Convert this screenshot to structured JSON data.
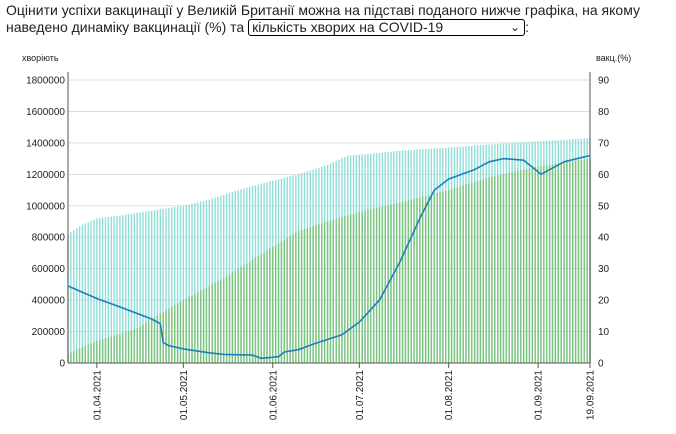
{
  "question": {
    "text_before": "Оцінити успіхи вакцинації у Великій Британії можна на підставі поданого нижче графіка, на якому наведено динаміку вакцинації (%) та",
    "select_value": "кількість хворих на COVID-19",
    "text_after": ":"
  },
  "colors": {
    "first_dose_bars": "#8fded8",
    "second_dose_bars": "#7cc47c",
    "cases_line": "#1f7fb8",
    "grid": "#dddddd",
    "axis": "#555555"
  },
  "chart_data": {
    "type": "bar+line",
    "left_axis_label": "хворіють",
    "right_axis_label": "вакц.(%)",
    "left_ylim": [
      0,
      1800000
    ],
    "left_ticks": [
      "0",
      "200000",
      "400000",
      "600000",
      "800000",
      "1000000",
      "1200000",
      "1400000",
      "1600000",
      "1800000"
    ],
    "right_ylim": [
      0,
      90
    ],
    "right_ticks": [
      "0",
      "10",
      "20",
      "30",
      "40",
      "50",
      "60",
      "70",
      "80",
      "90"
    ],
    "x_range": [
      "2021-03-22",
      "2021-09-19"
    ],
    "x_ticks": [
      "01.04.2021",
      "01.05.2021",
      "01.06.2021",
      "01.07.2021",
      "01.08.2021",
      "01.09.2021",
      "19.09.2021"
    ],
    "x_tick_dates": [
      "2021-04-01",
      "2021-05-01",
      "2021-06-01",
      "2021-07-01",
      "2021-08-01",
      "2021-09-01",
      "2021-09-19"
    ],
    "grid": true,
    "series": [
      {
        "kind": "bars",
        "axis": "right",
        "points": [
          [
            "2021-03-22",
            41
          ],
          [
            "2021-03-27",
            44
          ],
          [
            "2021-04-01",
            46
          ],
          [
            "2021-04-10",
            47
          ],
          [
            "2021-04-20",
            48.5
          ],
          [
            "2021-05-01",
            50
          ],
          [
            "2021-05-10",
            52
          ],
          [
            "2021-05-20",
            55
          ],
          [
            "2021-06-01",
            58
          ],
          [
            "2021-06-10",
            60
          ],
          [
            "2021-06-20",
            63
          ],
          [
            "2021-06-27",
            66
          ],
          [
            "2021-07-05",
            66.5
          ],
          [
            "2021-07-15",
            67.5
          ],
          [
            "2021-08-01",
            68.5
          ],
          [
            "2021-08-15",
            69.5
          ],
          [
            "2021-09-01",
            70.5
          ],
          [
            "2021-09-19",
            71.5
          ]
        ]
      },
      {
        "kind": "bars",
        "axis": "right",
        "points": [
          [
            "2021-03-22",
            3
          ],
          [
            "2021-04-01",
            7
          ],
          [
            "2021-04-15",
            11
          ],
          [
            "2021-04-20",
            14
          ],
          [
            "2021-05-01",
            20
          ],
          [
            "2021-05-15",
            27
          ],
          [
            "2021-06-01",
            37
          ],
          [
            "2021-06-10",
            42
          ],
          [
            "2021-06-20",
            45
          ],
          [
            "2021-07-01",
            48
          ],
          [
            "2021-07-15",
            51
          ],
          [
            "2021-08-01",
            55
          ],
          [
            "2021-08-15",
            59
          ],
          [
            "2021-09-01",
            62.5
          ],
          [
            "2021-09-19",
            65
          ]
        ]
      },
      {
        "kind": "line",
        "axis": "left",
        "points": [
          [
            "2021-03-22",
            490000
          ],
          [
            "2021-04-01",
            410000
          ],
          [
            "2021-04-10",
            350000
          ],
          [
            "2021-04-20",
            280000
          ],
          [
            "2021-04-23",
            250000
          ],
          [
            "2021-04-24",
            130000
          ],
          [
            "2021-04-26",
            110000
          ],
          [
            "2021-05-01",
            90000
          ],
          [
            "2021-05-10",
            65000
          ],
          [
            "2021-05-15",
            55000
          ],
          [
            "2021-05-25",
            50000
          ],
          [
            "2021-05-28",
            30000
          ],
          [
            "2021-06-03",
            40000
          ],
          [
            "2021-06-05",
            70000
          ],
          [
            "2021-06-10",
            85000
          ],
          [
            "2021-06-15",
            120000
          ],
          [
            "2021-06-25",
            180000
          ],
          [
            "2021-07-01",
            260000
          ],
          [
            "2021-07-08",
            400000
          ],
          [
            "2021-07-15",
            640000
          ],
          [
            "2021-07-22",
            920000
          ],
          [
            "2021-07-27",
            1100000
          ],
          [
            "2021-08-01",
            1170000
          ],
          [
            "2021-08-10",
            1230000
          ],
          [
            "2021-08-15",
            1280000
          ],
          [
            "2021-08-20",
            1300000
          ],
          [
            "2021-08-27",
            1290000
          ],
          [
            "2021-09-02",
            1200000
          ],
          [
            "2021-09-10",
            1280000
          ],
          [
            "2021-09-19",
            1320000
          ]
        ]
      }
    ]
  }
}
